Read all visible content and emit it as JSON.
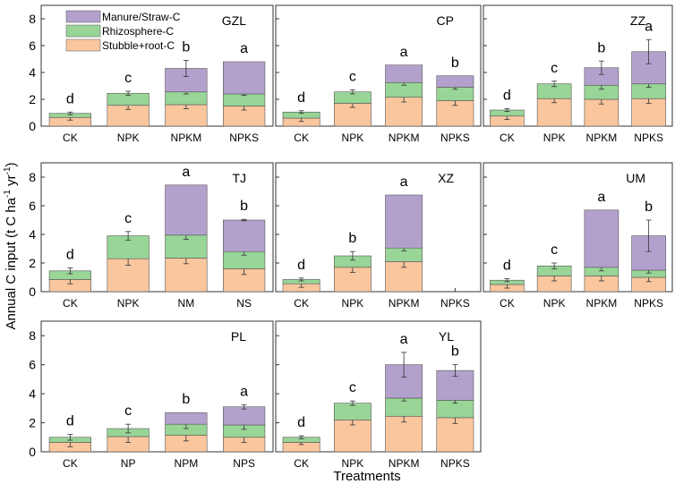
{
  "colors": {
    "manure_straw": "#b3a1cd",
    "rhizosphere": "#98d597",
    "stubble_root": "#f9c69e",
    "axis": "#333333"
  },
  "labels": {
    "ylabel": "Annual C input (t C ha",
    "ylabel_sup1": "-1",
    "ylabel_mid": " yr",
    "ylabel_sup2": "-1",
    "ylabel_end": ")",
    "xlabel": "Treatments"
  },
  "chart_data": {
    "type": "bar",
    "stacked": true,
    "ylim": [
      0,
      9
    ],
    "yticks": [
      "0",
      "2",
      "4",
      "6",
      "8"
    ],
    "legend": [
      "Manure/Straw-C",
      "Rhizosphere-C",
      "Stubble+root-C"
    ],
    "xlabel": "Treatments",
    "ylabel": "Annual C input (t C ha-1 yr-1)",
    "panels": [
      {
        "site": "GZL",
        "categories": [
          "CK",
          "NPK",
          "NPKM",
          "NPKS"
        ],
        "letters": [
          "d",
          "c",
          "b",
          "a"
        ],
        "series": [
          {
            "name": "Stubble+root-C",
            "values": [
              0.65,
              1.55,
              1.6,
              1.5
            ]
          },
          {
            "name": "Rhizosphere-C",
            "values": [
              0.3,
              0.9,
              0.95,
              0.9
            ]
          },
          {
            "name": "Manure/Straw-C",
            "values": [
              0,
              0,
              1.75,
              2.4
            ]
          }
        ],
        "errors": {
          "Stubble+root-C": [
            0.2,
            0.3,
            0.3,
            0.3
          ],
          "Rhizosphere-C": [
            0.1,
            0.15,
            0.15,
            0.1
          ],
          "Manure/Straw-C": [
            0,
            0,
            0.6,
            0
          ]
        }
      },
      {
        "site": "CP",
        "categories": [
          "CK",
          "NPK",
          "NPKM",
          "NPKS"
        ],
        "letters": [
          "d",
          "c",
          "a",
          "b"
        ],
        "series": [
          {
            "name": "Stubble+root-C",
            "values": [
              0.6,
              1.7,
              2.15,
              1.9
            ]
          },
          {
            "name": "Rhizosphere-C",
            "values": [
              0.45,
              0.85,
              1.1,
              1.0
            ]
          },
          {
            "name": "Manure/Straw-C",
            "values": [
              0,
              0,
              1.3,
              0.85
            ]
          }
        ],
        "errors": {
          "Stubble+root-C": [
            0.25,
            0.3,
            0.35,
            0.35
          ],
          "Rhizosphere-C": [
            0.1,
            0.15,
            0.2,
            0.15
          ],
          "Manure/Straw-C": [
            0,
            0,
            0,
            0
          ]
        }
      },
      {
        "site": "ZZ",
        "categories": [
          "CK",
          "NPK",
          "NPKM",
          "NPKS"
        ],
        "letters": [
          "d",
          "c",
          "b",
          "a"
        ],
        "series": [
          {
            "name": "Stubble+root-C",
            "values": [
              0.75,
              2.05,
              2.0,
              2.05
            ]
          },
          {
            "name": "Rhizosphere-C",
            "values": [
              0.45,
              1.1,
              1.05,
              1.1
            ]
          },
          {
            "name": "Manure/Straw-C",
            "values": [
              0,
              0,
              1.3,
              2.4
            ]
          }
        ],
        "errors": {
          "Stubble+root-C": [
            0.25,
            0.3,
            0.35,
            0.35
          ],
          "Rhizosphere-C": [
            0.1,
            0.2,
            0.3,
            0.25
          ],
          "Manure/Straw-C": [
            0,
            0,
            0.5,
            0.9
          ]
        }
      },
      {
        "site": "TJ",
        "categories": [
          "CK",
          "NPK",
          "NM",
          "NS"
        ],
        "letters": [
          "d",
          "c",
          "a",
          "b"
        ],
        "series": [
          {
            "name": "Stubble+root-C",
            "values": [
              0.85,
              2.3,
              2.35,
              1.6
            ]
          },
          {
            "name": "Rhizosphere-C",
            "values": [
              0.6,
              1.6,
              1.6,
              1.2
            ]
          },
          {
            "name": "Manure/Straw-C",
            "values": [
              0,
              0,
              3.5,
              2.2
            ]
          }
        ],
        "errors": {
          "Stubble+root-C": [
            0.3,
            0.45,
            0.4,
            0.4
          ],
          "Rhizosphere-C": [
            0.2,
            0.3,
            0.3,
            0.25
          ],
          "Manure/Straw-C": [
            0,
            0,
            0,
            0.05
          ]
        }
      },
      {
        "site": "XZ",
        "categories": [
          "CK",
          "NPK",
          "NPKM",
          "NPKS"
        ],
        "letters": [
          "d",
          "b",
          "a",
          ""
        ],
        "series": [
          {
            "name": "Stubble+root-C",
            "values": [
              0.55,
              1.7,
              2.1,
              0
            ]
          },
          {
            "name": "Rhizosphere-C",
            "values": [
              0.3,
              0.8,
              0.95,
              0
            ]
          },
          {
            "name": "Manure/Straw-C",
            "values": [
              0,
              0,
              3.7,
              0
            ]
          }
        ],
        "errors": {
          "Stubble+root-C": [
            0.25,
            0.35,
            0.4,
            0
          ],
          "Rhizosphere-C": [
            0.1,
            0.3,
            0.2,
            0
          ],
          "Manure/Straw-C": [
            0,
            0,
            0,
            0
          ]
        }
      },
      {
        "site": "UM",
        "categories": [
          "CK",
          "NPK",
          "NPKM",
          "NPKS"
        ],
        "letters": [
          "d",
          "c",
          "a",
          "b"
        ],
        "series": [
          {
            "name": "Stubble+root-C",
            "values": [
              0.5,
              1.1,
              1.1,
              1.0
            ]
          },
          {
            "name": "Rhizosphere-C",
            "values": [
              0.3,
              0.7,
              0.6,
              0.5
            ]
          },
          {
            "name": "Manure/Straw-C",
            "values": [
              0,
              0,
              4.0,
              2.4
            ]
          }
        ],
        "errors": {
          "Stubble+root-C": [
            0.25,
            0.35,
            0.35,
            0.3
          ],
          "Rhizosphere-C": [
            0.1,
            0.2,
            0.25,
            0.2
          ],
          "Manure/Straw-C": [
            0,
            0,
            0,
            1.1
          ]
        }
      },
      {
        "site": "PL",
        "categories": [
          "CK",
          "NP",
          "NPM",
          "NPS"
        ],
        "letters": [
          "d",
          "c",
          "b",
          "a"
        ],
        "series": [
          {
            "name": "Stubble+root-C",
            "values": [
              0.65,
              1.05,
              1.15,
              1.0
            ]
          },
          {
            "name": "Rhizosphere-C",
            "values": [
              0.35,
              0.55,
              0.75,
              0.85
            ]
          },
          {
            "name": "Manure/Straw-C",
            "values": [
              0,
              0,
              0.8,
              1.25
            ]
          }
        ],
        "errors": {
          "Stubble+root-C": [
            0.3,
            0.4,
            0.4,
            0.35
          ],
          "Rhizosphere-C": [
            0.2,
            0.3,
            0.3,
            0.3
          ],
          "Manure/Straw-C": [
            0,
            0,
            0,
            0.15
          ]
        }
      },
      {
        "site": "YL",
        "categories": [
          "CK",
          "NPK",
          "NPKM",
          "NPKS"
        ],
        "letters": [
          "d",
          "c",
          "a",
          "b"
        ],
        "series": [
          {
            "name": "Stubble+root-C",
            "values": [
              0.65,
              2.2,
              2.45,
              2.35
            ]
          },
          {
            "name": "Rhizosphere-C",
            "values": [
              0.35,
              1.15,
              1.25,
              1.2
            ]
          },
          {
            "name": "Manure/Straw-C",
            "values": [
              0,
              0,
              2.3,
              2.05
            ]
          }
        ],
        "errors": {
          "Stubble+root-C": [
            0.15,
            0.35,
            0.4,
            0.4
          ],
          "Rhizosphere-C": [
            0.1,
            0.15,
            0.2,
            0.2
          ],
          "Manure/Straw-C": [
            0,
            0,
            0.85,
            0.4
          ]
        }
      }
    ]
  }
}
